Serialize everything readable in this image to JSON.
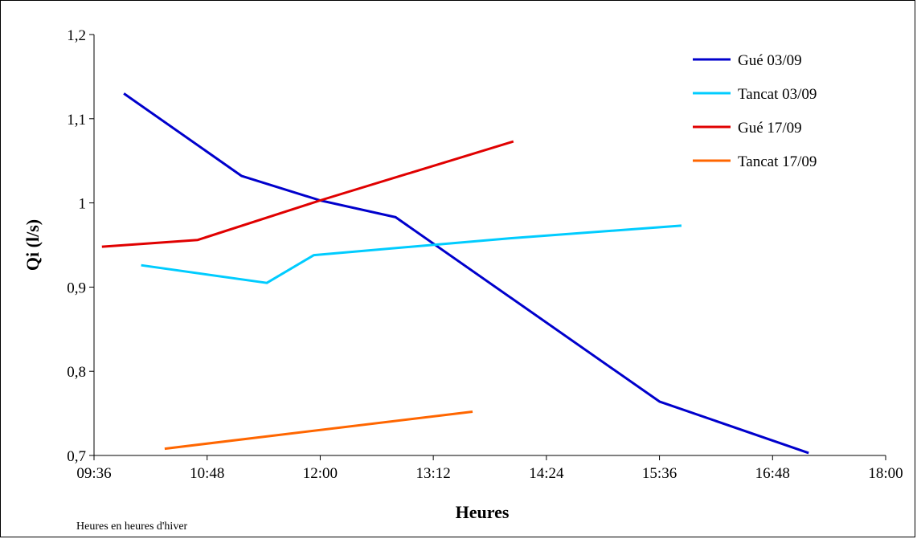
{
  "chart_data": {
    "type": "line",
    "xlabel": "Heures",
    "ylabel": "Qi (l/s)",
    "note": "Heures en heures d'hiver",
    "x_ticks": [
      "09:36",
      "10:48",
      "12:00",
      "13:12",
      "14:24",
      "15:36",
      "16:48",
      "18:00"
    ],
    "y_ticks": [
      "0,7",
      "0,8",
      "0,9",
      "1",
      "1,1",
      "1,2"
    ],
    "xlim": [
      "09:36",
      "18:00"
    ],
    "ylim": [
      0.7,
      1.2
    ],
    "grid": false,
    "legend_position": "top-right",
    "series": [
      {
        "name": "Gué 03/09",
        "color": "#0000CC",
        "points": [
          [
            "09:55",
            1.13
          ],
          [
            "11:10",
            1.032
          ],
          [
            "12:00",
            1.003
          ],
          [
            "12:48",
            0.983
          ],
          [
            "15:36",
            0.764
          ],
          [
            "17:11",
            0.703
          ]
        ]
      },
      {
        "name": "Tancat 03/09",
        "color": "#00CCFF",
        "points": [
          [
            "10:06",
            0.926
          ],
          [
            "11:26",
            0.905
          ],
          [
            "11:56",
            0.938
          ],
          [
            "14:01",
            0.958
          ],
          [
            "15:50",
            0.973
          ]
        ]
      },
      {
        "name": "Gué 17/09",
        "color": "#E00000",
        "points": [
          [
            "09:41",
            0.948
          ],
          [
            "10:42",
            0.956
          ],
          [
            "12:00",
            1.003
          ],
          [
            "14:03",
            1.073
          ]
        ]
      },
      {
        "name": "Tancat 17/09",
        "color": "#FF6600",
        "points": [
          [
            "10:21",
            0.708
          ],
          [
            "13:37",
            0.752
          ]
        ]
      }
    ]
  }
}
